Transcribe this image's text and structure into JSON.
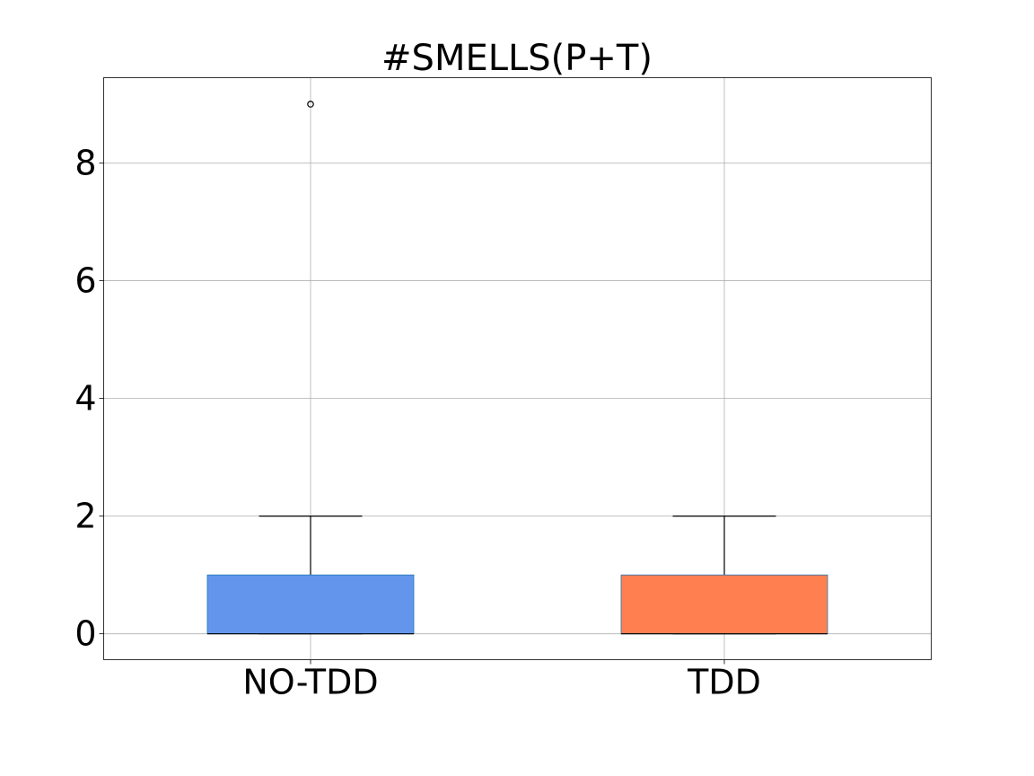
{
  "chart_data": {
    "type": "boxplot",
    "title": "#SMELLS(P+T)",
    "xlabel": "",
    "ylabel": "",
    "categories": [
      "NO-TDD",
      "TDD"
    ],
    "ylim": [
      -0.44,
      9.45
    ],
    "yticks": [
      0,
      2,
      4,
      6,
      8
    ],
    "grid": true,
    "legend": "none",
    "boxes": [
      {
        "name": "NO-TDD",
        "whisker_low": 0,
        "q1": 0,
        "median": 0,
        "q3": 1,
        "whisker_high": 2,
        "fliers": [
          9
        ],
        "color": "#6495ed"
      },
      {
        "name": "TDD",
        "whisker_low": 0,
        "q1": 0,
        "median": 0,
        "q3": 1,
        "whisker_high": 2,
        "fliers": [],
        "color": "#ff7f50"
      }
    ]
  }
}
